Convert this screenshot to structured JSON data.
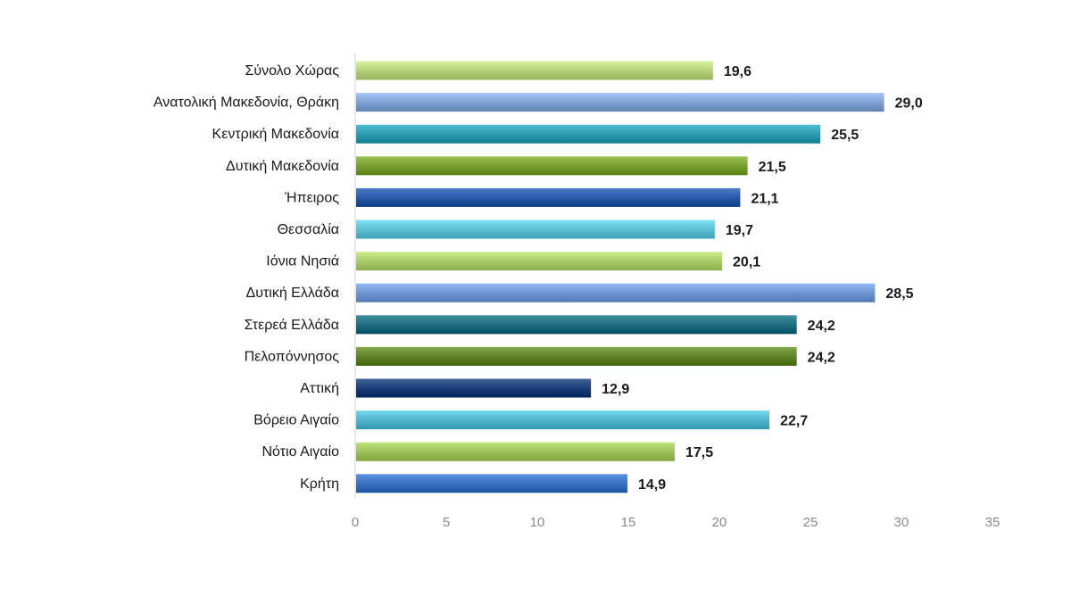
{
  "chart_data": {
    "type": "bar",
    "orientation": "horizontal",
    "title": "",
    "xlabel": "",
    "ylabel": "",
    "xlim": [
      0,
      35
    ],
    "x_ticks": [
      "0",
      "5",
      "10",
      "15",
      "20",
      "25",
      "30",
      "35"
    ],
    "grid": false,
    "legend": "none",
    "categories": [
      "Σύνολο Χώρας",
      "Ανατολική Μακεδονία, Θράκη",
      "Κεντρική Μακεδονία",
      "Δυτική Μακεδονία",
      "Ήπειρος",
      "Θεσσαλία",
      "Ιόνια Νησιά",
      "Δυτική Ελλάδα",
      "Στερεά Ελλάδα",
      "Πελοπόννησος",
      "Αττική",
      "Βόρειο Αιγαίο",
      "Νότιο Αιγαίο",
      "Κρήτη"
    ],
    "values": [
      19.6,
      29.0,
      25.5,
      21.5,
      21.1,
      19.7,
      20.1,
      28.5,
      24.2,
      24.2,
      12.9,
      22.7,
      17.5,
      14.9
    ],
    "value_labels": [
      "19,6",
      "29,0",
      "25,5",
      "21,5",
      "21,1",
      "19,7",
      "20,1",
      "28,5",
      "24,2",
      "24,2",
      "12,9",
      "22,7",
      "17,5",
      "14,9"
    ],
    "bar_colors": [
      "#b3d27a",
      "#7fa1d3",
      "#2e9cb0",
      "#78a030",
      "#2a5aa6",
      "#5cbfd4",
      "#a9cb6a",
      "#6f95d2",
      "#1f6e80",
      "#5e8326",
      "#1d3f78",
      "#4fb6cc",
      "#9cc25c",
      "#3a72c0"
    ]
  }
}
